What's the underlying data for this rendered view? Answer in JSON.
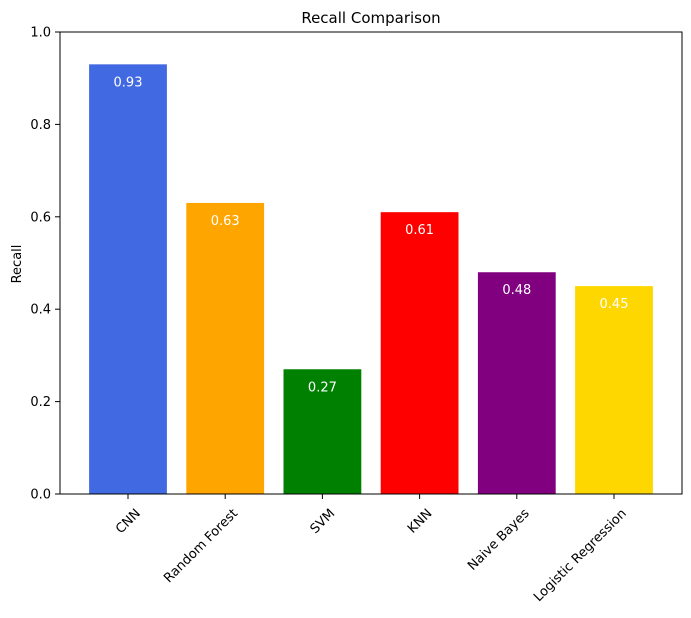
{
  "chart_data": {
    "type": "bar",
    "title": "Recall Comparison",
    "xlabel": "",
    "ylabel": "Recall",
    "ylim": [
      0,
      1.0
    ],
    "yticks": [
      "0.0",
      "0.2",
      "0.4",
      "0.6",
      "0.8",
      "1.0"
    ],
    "ytick_values": [
      0,
      0.2,
      0.4,
      0.6,
      0.8,
      1.0
    ],
    "categories": [
      "CNN",
      "Random Forest",
      "SVM",
      "KNN",
      "Naive Bayes",
      "Logistic Regression"
    ],
    "values": [
      0.93,
      0.63,
      0.27,
      0.61,
      0.48,
      0.45
    ],
    "data_labels": [
      "0.93",
      "0.63",
      "0.27",
      "0.61",
      "0.48",
      "0.45"
    ],
    "colors": [
      "#4169E1",
      "#FFA500",
      "#008000",
      "#FF0000",
      "#800080",
      "#FFD700"
    ],
    "grid": false,
    "legend": "none"
  }
}
